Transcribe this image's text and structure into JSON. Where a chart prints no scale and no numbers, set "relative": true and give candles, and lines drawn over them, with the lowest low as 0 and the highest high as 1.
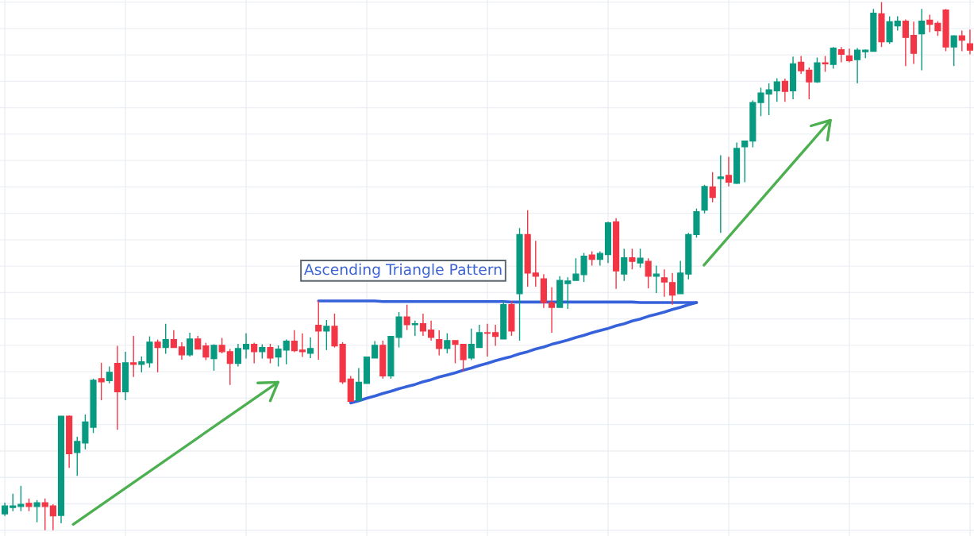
{
  "chart_data": {
    "type": "candlestick",
    "relative": true,
    "grid": true,
    "categories": [
      null,
      null,
      null,
      null,
      null,
      null,
      null,
      null,
      null,
      null,
      null,
      null,
      null,
      null,
      null,
      null,
      null,
      null,
      null,
      null,
      null,
      null,
      null,
      null,
      null,
      null,
      null,
      null,
      null,
      null,
      null,
      null,
      null,
      null,
      null,
      null,
      null,
      null,
      null,
      null,
      null,
      null,
      null,
      null,
      null,
      null,
      null,
      null,
      null,
      null,
      null,
      null,
      null,
      null,
      null,
      null,
      null,
      null,
      null,
      null,
      null,
      null,
      null,
      null,
      null,
      null,
      null,
      null,
      null,
      null,
      null,
      null,
      null,
      null,
      null,
      null,
      null,
      null,
      null,
      null,
      null,
      null,
      null,
      null,
      null,
      null,
      null,
      null,
      null,
      null,
      null,
      null,
      null,
      null,
      null,
      null,
      null,
      null,
      null,
      null,
      null,
      null,
      null,
      null,
      null,
      null,
      null,
      null,
      null,
      null,
      null,
      null,
      null,
      null,
      null,
      null,
      null,
      null,
      null,
      null,
      null
    ],
    "ohlc": [
      [
        0.031,
        0.052,
        0.027,
        0.046
      ],
      [
        0.043,
        0.069,
        0.036,
        0.046
      ],
      [
        0.045,
        0.084,
        0.036,
        0.049
      ],
      [
        0.051,
        0.06,
        0.036,
        0.045
      ],
      [
        0.045,
        0.057,
        0.015,
        0.052
      ],
      [
        0.052,
        0.06,
        0.0,
        0.045
      ],
      [
        0.046,
        0.049,
        0.0,
        0.027
      ],
      [
        0.028,
        0.216,
        0.013,
        0.216
      ],
      [
        0.216,
        0.217,
        0.118,
        0.145
      ],
      [
        0.147,
        0.177,
        0.103,
        0.168
      ],
      [
        0.165,
        0.219,
        0.153,
        0.205
      ],
      [
        0.195,
        0.287,
        0.184,
        0.284
      ],
      [
        0.287,
        0.317,
        0.246,
        0.281
      ],
      [
        0.283,
        0.31,
        0.278,
        0.299
      ],
      [
        0.316,
        0.349,
        0.19,
        0.262
      ],
      [
        0.262,
        0.338,
        0.246,
        0.317
      ],
      [
        0.317,
        0.368,
        0.29,
        0.314
      ],
      [
        0.314,
        0.329,
        0.299,
        0.319
      ],
      [
        0.317,
        0.367,
        0.308,
        0.356
      ],
      [
        0.356,
        0.361,
        0.299,
        0.346
      ],
      [
        0.346,
        0.391,
        0.334,
        0.361
      ],
      [
        0.361,
        0.379,
        0.346,
        0.346
      ],
      [
        0.347,
        0.356,
        0.323,
        0.332
      ],
      [
        0.332,
        0.374,
        0.329,
        0.362
      ],
      [
        0.362,
        0.368,
        0.343,
        0.343
      ],
      [
        0.349,
        0.355,
        0.322,
        0.328
      ],
      [
        0.325,
        0.352,
        0.302,
        0.35
      ],
      [
        0.35,
        0.364,
        0.335,
        0.338
      ],
      [
        0.338,
        0.343,
        0.275,
        0.316
      ],
      [
        0.316,
        0.353,
        0.31,
        0.344
      ],
      [
        0.343,
        0.373,
        0.325,
        0.352
      ],
      [
        0.352,
        0.355,
        0.316,
        0.338
      ],
      [
        0.338,
        0.352,
        0.325,
        0.346
      ],
      [
        0.346,
        0.353,
        0.316,
        0.326
      ],
      [
        0.328,
        0.35,
        0.31,
        0.343
      ],
      [
        0.341,
        0.361,
        0.314,
        0.358
      ],
      [
        0.358,
        0.379,
        0.337,
        0.34
      ],
      [
        0.341,
        0.373,
        0.328,
        0.338
      ],
      [
        0.335,
        0.365,
        0.326,
        0.344
      ],
      [
        0.388,
        0.434,
        0.323,
        0.377
      ],
      [
        0.377,
        0.398,
        0.341,
        0.386
      ],
      [
        0.386,
        0.41,
        0.346,
        0.349
      ],
      [
        0.352,
        0.356,
        0.277,
        0.281
      ],
      [
        0.286,
        0.292,
        0.244,
        0.244
      ],
      [
        0.246,
        0.307,
        0.244,
        0.28
      ],
      [
        0.278,
        0.329,
        0.278,
        0.328
      ],
      [
        0.326,
        0.358,
        0.326,
        0.35
      ],
      [
        0.35,
        0.359,
        0.287,
        0.292
      ],
      [
        0.292,
        0.368,
        0.287,
        0.367
      ],
      [
        0.365,
        0.413,
        0.346,
        0.404
      ],
      [
        0.404,
        0.427,
        0.379,
        0.389
      ],
      [
        0.389,
        0.397,
        0.368,
        0.391
      ],
      [
        0.391,
        0.41,
        0.368,
        0.377
      ],
      [
        0.379,
        0.397,
        0.359,
        0.365
      ],
      [
        0.361,
        0.379,
        0.331,
        0.344
      ],
      [
        0.344,
        0.373,
        0.335,
        0.359
      ],
      [
        0.359,
        0.359,
        0.316,
        0.352
      ],
      [
        0.352,
        0.352,
        0.301,
        0.323
      ],
      [
        0.326,
        0.382,
        0.322,
        0.352
      ],
      [
        0.346,
        0.389,
        0.346,
        0.374
      ],
      [
        0.374,
        0.391,
        0.329,
        0.373
      ],
      [
        0.374,
        0.389,
        0.349,
        0.367
      ],
      [
        0.362,
        0.434,
        0.362,
        0.427
      ],
      [
        0.427,
        0.434,
        0.368,
        0.377
      ],
      [
        0.448,
        0.572,
        0.359,
        0.56
      ],
      [
        0.56,
        0.606,
        0.461,
        0.487
      ],
      [
        0.487,
        0.548,
        0.461,
        0.481
      ],
      [
        0.476,
        0.485,
        0.421,
        0.431
      ],
      [
        0.431,
        0.46,
        0.374,
        0.422
      ],
      [
        0.422,
        0.481,
        0.422,
        0.473
      ],
      [
        0.467,
        0.479,
        0.419,
        0.472
      ],
      [
        0.473,
        0.515,
        0.473,
        0.485
      ],
      [
        0.484,
        0.525,
        0.47,
        0.519
      ],
      [
        0.521,
        0.528,
        0.501,
        0.513
      ],
      [
        0.513,
        0.528,
        0.501,
        0.524
      ],
      [
        0.522,
        0.584,
        0.506,
        0.582
      ],
      [
        0.584,
        0.591,
        0.457,
        0.491
      ],
      [
        0.485,
        0.533,
        0.472,
        0.516
      ],
      [
        0.516,
        0.533,
        0.494,
        0.509
      ],
      [
        0.506,
        0.533,
        0.497,
        0.515
      ],
      [
        0.509,
        0.515,
        0.458,
        0.481
      ],
      [
        0.481,
        0.501,
        0.449,
        0.485
      ],
      [
        0.478,
        0.494,
        0.442,
        0.47
      ],
      [
        0.469,
        0.487,
        0.427,
        0.445
      ],
      [
        0.448,
        0.51,
        0.448,
        0.487
      ],
      [
        0.485,
        0.563,
        0.475,
        0.56
      ],
      [
        0.56,
        0.609,
        0.554,
        0.603
      ],
      [
        0.606,
        0.654,
        0.6,
        0.651
      ],
      [
        0.65,
        0.678,
        0.621,
        0.63
      ],
      [
        0.666,
        0.71,
        0.563,
        0.669
      ],
      [
        0.672,
        0.707,
        0.651,
        0.659
      ],
      [
        0.657,
        0.734,
        0.656,
        0.723
      ],
      [
        0.726,
        0.738,
        0.659,
        0.737
      ],
      [
        0.737,
        0.814,
        0.725,
        0.81
      ],
      [
        0.81,
        0.838,
        0.784,
        0.828
      ],
      [
        0.826,
        0.846,
        0.786,
        0.834
      ],
      [
        0.832,
        0.856,
        0.811,
        0.849
      ],
      [
        0.85,
        0.855,
        0.811,
        0.831
      ],
      [
        0.832,
        0.897,
        0.816,
        0.883
      ],
      [
        0.886,
        0.898,
        0.864,
        0.87
      ],
      [
        0.871,
        0.876,
        0.816,
        0.849
      ],
      [
        0.849,
        0.895,
        0.847,
        0.885
      ],
      [
        0.885,
        0.898,
        0.868,
        0.883
      ],
      [
        0.882,
        0.915,
        0.874,
        0.913
      ],
      [
        0.91,
        0.915,
        0.886,
        0.901
      ],
      [
        0.898,
        0.912,
        0.886,
        0.889
      ],
      [
        0.891,
        0.913,
        0.846,
        0.909
      ],
      [
        0.906,
        0.91,
        0.894,
        0.909
      ],
      [
        0.907,
        0.987,
        0.907,
        0.979
      ],
      [
        0.978,
        1.0,
        0.915,
        0.925
      ],
      [
        0.925,
        0.973,
        0.921,
        0.963
      ],
      [
        0.955,
        0.973,
        0.946,
        0.964
      ],
      [
        0.964,
        0.967,
        0.879,
        0.933
      ],
      [
        0.937,
        0.963,
        0.883,
        0.903
      ],
      [
        0.94,
        0.987,
        0.871,
        0.964
      ],
      [
        0.966,
        0.976,
        0.943,
        0.958
      ],
      [
        0.96,
        0.964,
        0.936,
        0.946
      ],
      [
        0.985,
        0.987,
        0.907,
        0.915
      ],
      [
        0.915,
        0.937,
        0.879,
        0.936
      ],
      [
        0.936,
        0.946,
        0.907,
        0.928
      ],
      [
        0.921,
        0.948,
        0.901,
        0.909
      ]
    ],
    "colors": [
      "#089981",
      "#089981",
      "#089981",
      "#f23645",
      "#089981",
      "#f23645",
      "#f23645",
      "#089981",
      "#f23645",
      "#089981",
      "#089981",
      "#089981",
      "#f23645",
      "#089981",
      "#f23645",
      "#089981",
      "#f23645",
      "#089981",
      "#089981",
      "#f23645",
      "#089981",
      "#f23645",
      "#f23645",
      "#089981",
      "#f23645",
      "#f23645",
      "#089981",
      "#f23645",
      "#f23645",
      "#089981",
      "#089981",
      "#f23645",
      "#089981",
      "#f23645",
      "#089981",
      "#089981",
      "#f23645",
      "#f23645",
      "#089981",
      "#f23645",
      "#089981",
      "#f23645",
      "#f23645",
      "#f23645",
      "#089981",
      "#089981",
      "#089981",
      "#f23645",
      "#089981",
      "#089981",
      "#f23645",
      "#089981",
      "#f23645",
      "#f23645",
      "#f23645",
      "#089981",
      "#f23645",
      "#f23645",
      "#089981",
      "#089981",
      "#f23645",
      "#f23645",
      "#089981",
      "#f23645",
      "#089981",
      "#f23645",
      "#f23645",
      "#f23645",
      "#f23645",
      "#089981",
      "#089981",
      "#089981",
      "#089981",
      "#f23645",
      "#089981",
      "#089981",
      "#f23645",
      "#089981",
      "#f23645",
      "#089981",
      "#f23645",
      "#089981",
      "#f23645",
      "#f23645",
      "#089981",
      "#089981",
      "#089981",
      "#089981",
      "#f23645",
      "#089981",
      "#f23645",
      "#089981",
      "#089981",
      "#089981",
      "#089981",
      "#089981",
      "#089981",
      "#f23645",
      "#089981",
      "#f23645",
      "#f23645",
      "#089981",
      "#f23645",
      "#089981",
      "#f23645",
      "#f23645",
      "#089981",
      "#089981",
      "#089981",
      "#f23645",
      "#089981",
      "#089981",
      "#f23645",
      "#f23645",
      "#089981",
      "#f23645",
      "#f23645",
      "#f23645",
      "#089981",
      "#f23645",
      "#f23645"
    ],
    "series": [
      {
        "type": "line",
        "color": "#3561db",
        "values": [
          null,
          null,
          null,
          null,
          null,
          null,
          null,
          null,
          null,
          null,
          null,
          null,
          null,
          null,
          null,
          null,
          null,
          null,
          null,
          null,
          null,
          null,
          null,
          null,
          null,
          null,
          null,
          null,
          null,
          null,
          null,
          null,
          null,
          null,
          null,
          null,
          null,
          null,
          null,
          0.434,
          0.434,
          0.434,
          0.434,
          0.434,
          0.434,
          0.434,
          0.434,
          0.433,
          0.433,
          0.433,
          0.433,
          0.433,
          0.433,
          0.433,
          0.433,
          0.433,
          0.433,
          0.433,
          0.433,
          0.433,
          0.433,
          0.433,
          0.433,
          0.432,
          0.432,
          0.432,
          0.432,
          0.432,
          0.432,
          0.432,
          0.432,
          0.432,
          0.432,
          0.432,
          0.432,
          0.432,
          0.432,
          0.432,
          0.432,
          0.431,
          0.431,
          0.431,
          0.431,
          0.431,
          0.431,
          0.431,
          0.431,
          null,
          null,
          null,
          null,
          null,
          null,
          null,
          null,
          null,
          null,
          null,
          null,
          null,
          null,
          null,
          null,
          null,
          null,
          null,
          null,
          null,
          null,
          null,
          null,
          null,
          null,
          null,
          null,
          null,
          null,
          null,
          null,
          null,
          null
        ]
      },
      {
        "type": "line",
        "color": "#3561db",
        "values": [
          null,
          null,
          null,
          null,
          null,
          null,
          null,
          null,
          null,
          null,
          null,
          null,
          null,
          null,
          null,
          null,
          null,
          null,
          null,
          null,
          null,
          null,
          null,
          null,
          null,
          null,
          null,
          null,
          null,
          null,
          null,
          null,
          null,
          null,
          null,
          null,
          null,
          null,
          null,
          null,
          null,
          null,
          null,
          0.241,
          0.245,
          0.25,
          0.254,
          0.259,
          0.263,
          0.268,
          0.272,
          0.276,
          0.281,
          0.285,
          0.29,
          0.294,
          0.298,
          0.303,
          0.307,
          0.312,
          0.316,
          0.321,
          0.325,
          0.329,
          0.334,
          0.338,
          0.343,
          0.347,
          0.352,
          0.356,
          0.36,
          0.365,
          0.369,
          0.374,
          0.378,
          0.382,
          0.387,
          0.391,
          0.396,
          0.4,
          0.405,
          0.409,
          0.413,
          0.418,
          0.422,
          0.427,
          0.431,
          null,
          null,
          null,
          null,
          null,
          null,
          null,
          null,
          null,
          null,
          null,
          null,
          null,
          null,
          null,
          null,
          null,
          null,
          null,
          null,
          null,
          null,
          null,
          null,
          null,
          null,
          null,
          null,
          null,
          null,
          null,
          null,
          null,
          null
        ]
      }
    ],
    "annotations": [
      "Ascending Triangle Pattern"
    ]
  }
}
